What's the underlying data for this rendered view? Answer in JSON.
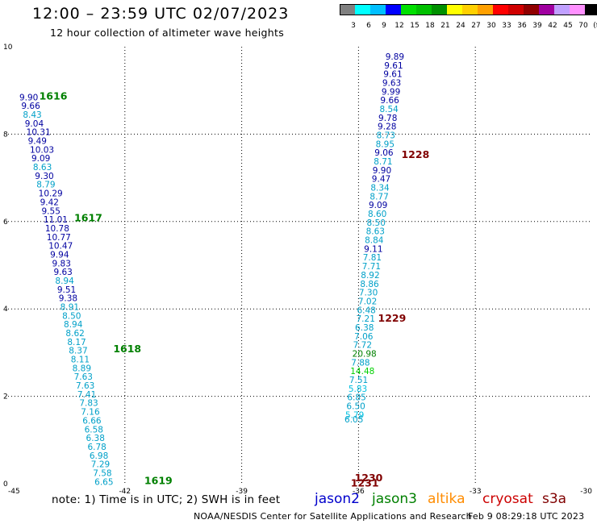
{
  "header": {
    "title": "12:00 – 23:59 UTC 02/07/2023",
    "subtitle": "12 hour collection of altimeter wave heights"
  },
  "colorbar": {
    "swatches": [
      "#808080",
      "#00ffff",
      "#00bfff",
      "#0000ff",
      "#00e000",
      "#00c000",
      "#009000",
      "#ffff00",
      "#ffd000",
      "#ffa000",
      "#ff0000",
      "#d00000",
      "#900000",
      "#a000a0",
      "#c0a0ff",
      "#ff90ff",
      "#000000"
    ],
    "labels": [
      "3",
      "6",
      "9",
      "12",
      "15",
      "18",
      "21",
      "24",
      "27",
      "30",
      "33",
      "36",
      "39",
      "42",
      "45",
      "70",
      "(ft)"
    ]
  },
  "chart_data": {
    "type": "scatter",
    "title": "12:00 – 23:59 UTC 02/07/2023",
    "subtitle": "12 hour collection of altimeter wave heights",
    "xlim": [
      -45,
      -30
    ],
    "ylim": [
      0,
      10
    ],
    "x_ticks": [
      "-45",
      "-42",
      "-39",
      "-36",
      "-33",
      "-30"
    ],
    "y_ticks": [
      "0",
      "2",
      "4",
      "6",
      "8",
      "10"
    ],
    "grid": true,
    "series": [
      {
        "name": "jason2",
        "color": "#00008b",
        "points": [
          {
            "x": -44.71,
            "y": 8.85,
            "v": "9.90",
            "c": "#0000a0"
          },
          {
            "x": -44.66,
            "y": 8.65,
            "v": "9.66",
            "c": "#0000a0"
          },
          {
            "x": -44.62,
            "y": 8.45,
            "v": "8.43",
            "c": "#00a0c8"
          },
          {
            "x": -44.57,
            "y": 8.25,
            "v": "9.04",
            "c": "#0000a0"
          },
          {
            "x": -44.53,
            "y": 8.05,
            "v": "10.31",
            "c": "#0000a0"
          },
          {
            "x": -44.49,
            "y": 7.85,
            "v": "9.49",
            "c": "#0000a0"
          },
          {
            "x": -44.44,
            "y": 7.65,
            "v": "10.03",
            "c": "#0000a0"
          },
          {
            "x": -44.4,
            "y": 7.45,
            "v": "9.09",
            "c": "#0000a0"
          },
          {
            "x": -44.36,
            "y": 7.25,
            "v": "8.63",
            "c": "#00a0c8"
          },
          {
            "x": -44.31,
            "y": 7.05,
            "v": "9.30",
            "c": "#0000a0"
          },
          {
            "x": -44.27,
            "y": 6.85,
            "v": "8.79",
            "c": "#00a0c8"
          },
          {
            "x": -44.22,
            "y": 6.65,
            "v": "10.29",
            "c": "#0000a0"
          },
          {
            "x": -44.18,
            "y": 6.45,
            "v": "9.42",
            "c": "#0000a0"
          },
          {
            "x": -44.14,
            "y": 6.25,
            "v": "9.55",
            "c": "#0000a0"
          },
          {
            "x": -44.09,
            "y": 6.05,
            "v": "11.01",
            "c": "#0000a0"
          },
          {
            "x": -44.05,
            "y": 5.85,
            "v": "10.78",
            "c": "#0000a0"
          },
          {
            "x": -44.01,
            "y": 5.65,
            "v": "10.77",
            "c": "#0000a0"
          },
          {
            "x": -43.96,
            "y": 5.45,
            "v": "10.47",
            "c": "#0000a0"
          },
          {
            "x": -43.92,
            "y": 5.25,
            "v": "9.94",
            "c": "#0000a0"
          },
          {
            "x": -43.87,
            "y": 5.05,
            "v": "9.83",
            "c": "#0000a0"
          },
          {
            "x": -43.83,
            "y": 4.85,
            "v": "9.63",
            "c": "#0000a0"
          },
          {
            "x": -43.79,
            "y": 4.65,
            "v": "8.94",
            "c": "#00a0c8"
          },
          {
            "x": -43.74,
            "y": 4.45,
            "v": "9.51",
            "c": "#0000a0"
          },
          {
            "x": -43.7,
            "y": 4.25,
            "v": "9.38",
            "c": "#0000a0"
          },
          {
            "x": -43.66,
            "y": 4.05,
            "v": "8.91",
            "c": "#00a0c8"
          },
          {
            "x": -43.61,
            "y": 3.85,
            "v": "8.50",
            "c": "#00a0c8"
          },
          {
            "x": -43.57,
            "y": 3.65,
            "v": "8.94",
            "c": "#00a0c8"
          },
          {
            "x": -43.52,
            "y": 3.45,
            "v": "8.62",
            "c": "#00a0c8"
          },
          {
            "x": -43.48,
            "y": 3.25,
            "v": "8.17",
            "c": "#00a0c8"
          },
          {
            "x": -43.44,
            "y": 3.05,
            "v": "8.37",
            "c": "#00a0c8"
          },
          {
            "x": -43.39,
            "y": 2.85,
            "v": "8.11",
            "c": "#00a0c8"
          },
          {
            "x": -43.35,
            "y": 2.65,
            "v": "8.89",
            "c": "#00a0c8"
          },
          {
            "x": -43.31,
            "y": 2.45,
            "v": "7.63",
            "c": "#00a0c8"
          },
          {
            "x": -43.26,
            "y": 2.25,
            "v": "7.63",
            "c": "#00a0c8"
          },
          {
            "x": -43.22,
            "y": 2.05,
            "v": "7.41",
            "c": "#00a0c8"
          },
          {
            "x": -43.17,
            "y": 1.85,
            "v": "7.83",
            "c": "#00a0c8"
          },
          {
            "x": -43.13,
            "y": 1.65,
            "v": "7.16",
            "c": "#00a0c8"
          },
          {
            "x": -43.09,
            "y": 1.45,
            "v": "6.66",
            "c": "#00a0c8"
          },
          {
            "x": -43.04,
            "y": 1.25,
            "v": "6.58",
            "c": "#00a0c8"
          },
          {
            "x": -43.0,
            "y": 1.05,
            "v": "6.38",
            "c": "#00a0c8"
          },
          {
            "x": -42.96,
            "y": 0.85,
            "v": "6.78",
            "c": "#00a0c8"
          },
          {
            "x": -42.91,
            "y": 0.65,
            "v": "6.98",
            "c": "#00a0c8"
          },
          {
            "x": -42.87,
            "y": 0.45,
            "v": "7.29",
            "c": "#00a0c8"
          },
          {
            "x": -42.82,
            "y": 0.25,
            "v": "7.58",
            "c": "#00a0c8"
          },
          {
            "x": -42.78,
            "y": 0.05,
            "v": "6.65",
            "c": "#00a0c8"
          }
        ]
      },
      {
        "name": "jason3",
        "color": "#008000",
        "points": [
          {
            "x": -35.31,
            "y": 9.78,
            "v": "9.89",
            "c": "#0000a0"
          },
          {
            "x": -35.34,
            "y": 9.58,
            "v": "9.61",
            "c": "#0000a0"
          },
          {
            "x": -35.36,
            "y": 9.38,
            "v": "9.61",
            "c": "#0000a0"
          },
          {
            "x": -35.39,
            "y": 9.18,
            "v": "9.63",
            "c": "#0000a0"
          },
          {
            "x": -35.41,
            "y": 8.98,
            "v": "9.99",
            "c": "#0000a0"
          },
          {
            "x": -35.44,
            "y": 8.78,
            "v": "9.66",
            "c": "#0000a0"
          },
          {
            "x": -35.46,
            "y": 8.58,
            "v": "8.54",
            "c": "#00a0c8"
          },
          {
            "x": -35.49,
            "y": 8.38,
            "v": "9.78",
            "c": "#0000a0"
          },
          {
            "x": -35.51,
            "y": 8.18,
            "v": "9.28",
            "c": "#0000a0"
          },
          {
            "x": -35.54,
            "y": 7.98,
            "v": "8.73",
            "c": "#00a0c8"
          },
          {
            "x": -35.56,
            "y": 7.78,
            "v": "8.95",
            "c": "#00a0c8"
          },
          {
            "x": -35.59,
            "y": 7.58,
            "v": "9.06",
            "c": "#0000a0"
          },
          {
            "x": -35.61,
            "y": 7.38,
            "v": "8.71",
            "c": "#00a0c8"
          },
          {
            "x": -35.64,
            "y": 7.18,
            "v": "9.90",
            "c": "#0000a0"
          },
          {
            "x": -35.66,
            "y": 6.98,
            "v": "9.47",
            "c": "#0000a0"
          },
          {
            "x": -35.69,
            "y": 6.78,
            "v": "8.34",
            "c": "#00a0c8"
          },
          {
            "x": -35.71,
            "y": 6.58,
            "v": "8.77",
            "c": "#00a0c8"
          },
          {
            "x": -35.74,
            "y": 6.38,
            "v": "9.09",
            "c": "#0000a0"
          },
          {
            "x": -35.76,
            "y": 6.18,
            "v": "8.60",
            "c": "#00a0c8"
          },
          {
            "x": -35.79,
            "y": 5.98,
            "v": "8.50",
            "c": "#00a0c8"
          },
          {
            "x": -35.81,
            "y": 5.78,
            "v": "8.63",
            "c": "#00a0c8"
          },
          {
            "x": -35.84,
            "y": 5.58,
            "v": "8.84",
            "c": "#00a0c8"
          },
          {
            "x": -35.86,
            "y": 5.38,
            "v": "9.11",
            "c": "#0000a0"
          },
          {
            "x": -35.89,
            "y": 5.18,
            "v": "7.81",
            "c": "#00a0c8"
          },
          {
            "x": -35.91,
            "y": 4.98,
            "v": "7.71",
            "c": "#00a0c8"
          },
          {
            "x": -35.94,
            "y": 4.78,
            "v": "8.92",
            "c": "#00a0c8"
          },
          {
            "x": -35.96,
            "y": 4.58,
            "v": "8.86",
            "c": "#00a0c8"
          },
          {
            "x": -35.99,
            "y": 4.38,
            "v": "7.30",
            "c": "#00a0c8"
          },
          {
            "x": -36.01,
            "y": 4.18,
            "v": "7.02",
            "c": "#00a0c8"
          },
          {
            "x": -36.04,
            "y": 3.98,
            "v": "6.48",
            "c": "#00a0c8"
          },
          {
            "x": -36.06,
            "y": 3.78,
            "v": "7.21",
            "c": "#00a0c8"
          },
          {
            "x": -36.09,
            "y": 3.58,
            "v": "6.38",
            "c": "#00a0c8"
          },
          {
            "x": -36.11,
            "y": 3.38,
            "v": "7.06",
            "c": "#00a0c8"
          },
          {
            "x": -36.14,
            "y": 3.18,
            "v": "7.72",
            "c": "#00a0c8"
          },
          {
            "x": -36.16,
            "y": 2.98,
            "v": "20.98",
            "c": "#008000"
          },
          {
            "x": -36.19,
            "y": 2.78,
            "v": "7.88",
            "c": "#00a0c8"
          },
          {
            "x": -36.21,
            "y": 2.58,
            "v": "14.48",
            "c": "#00d000"
          },
          {
            "x": -36.24,
            "y": 2.38,
            "v": "7.51",
            "c": "#00a0c8"
          },
          {
            "x": -36.26,
            "y": 2.18,
            "v": "5.83",
            "c": "#00c0e0"
          },
          {
            "x": -36.29,
            "y": 1.98,
            "v": "6.85",
            "c": "#00a0c8"
          },
          {
            "x": -36.31,
            "y": 1.78,
            "v": "6.50",
            "c": "#00a0c8"
          },
          {
            "x": -36.34,
            "y": 1.58,
            "v": "5.79",
            "c": "#00c0e0"
          },
          {
            "x": -36.36,
            "y": 1.48,
            "v": "6.05",
            "c": "#00a0c8"
          }
        ]
      }
    ],
    "pass_labels": [
      {
        "text": "1616",
        "x": -44.2,
        "y": 8.88,
        "c": "#008000"
      },
      {
        "text": "1617",
        "x": -43.3,
        "y": 6.1,
        "c": "#008000"
      },
      {
        "text": "1618",
        "x": -42.3,
        "y": 3.1,
        "c": "#008000"
      },
      {
        "text": "1619",
        "x": -41.5,
        "y": 0.08,
        "c": "#008000"
      },
      {
        "text": "1228",
        "x": -34.9,
        "y": 7.55,
        "c": "#800000"
      },
      {
        "text": "1229",
        "x": -35.5,
        "y": 3.8,
        "c": "#800000"
      },
      {
        "text": "1230",
        "x": -36.1,
        "y": 0.15,
        "c": "#800000"
      },
      {
        "text": "1231",
        "x": -36.2,
        "y": 0.03,
        "c": "#800000"
      }
    ]
  },
  "satellites": [
    {
      "name": "jason2",
      "color": "#0000cc"
    },
    {
      "name": "jason3",
      "color": "#008000"
    },
    {
      "name": "altika",
      "color": "#ff8c00"
    },
    {
      "name": "cryosat",
      "color": "#cc0000"
    },
    {
      "name": "s3a",
      "color": "#800000"
    }
  ],
  "footer": {
    "note": "note:  1) Time is in UTC;  2) SWH is in feet",
    "credit": "NOAA/NESDIS Center for Satellite Applications and Research",
    "timestamp": "Feb  9 08:29:18 UTC 2023"
  }
}
